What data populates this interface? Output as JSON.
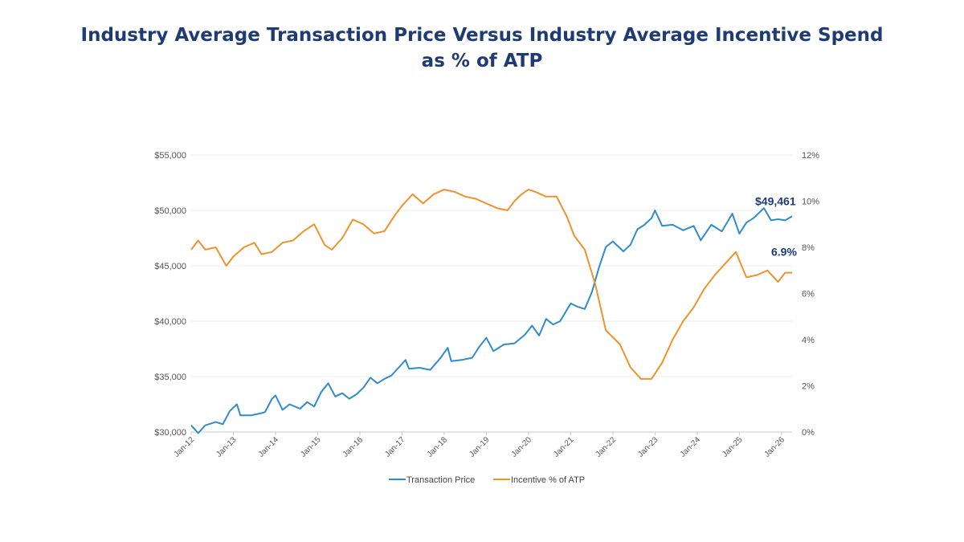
{
  "chart_data": {
    "type": "line",
    "title": "Industry Average Transaction Price Versus Industry Average Incentive Spend as % of ATP",
    "x_ticks": [
      "Jan-12",
      "Jan-13",
      "Jan-14",
      "Jan-15",
      "Jan-16",
      "Jan-17",
      "Jan-18",
      "Jan-19",
      "Jan-20",
      "Jan-21",
      "Jan-22",
      "Jan-23",
      "Jan-24",
      "Jan-25",
      "Jan-26"
    ],
    "x_range": [
      "2012-01",
      "2026-04"
    ],
    "y_left": {
      "min": 30000,
      "max": 55000,
      "ticks": [
        "$30,000",
        "$35,000",
        "$40,000",
        "$45,000",
        "$50,000",
        "$55,000"
      ]
    },
    "y_right": {
      "min": 0,
      "max": 12,
      "ticks": [
        "0%",
        "2%",
        "4%",
        "6%",
        "8%",
        "10%",
        "12%"
      ]
    },
    "grid": true,
    "legend_position": "bottom",
    "series": [
      {
        "name": "Transaction Price",
        "axis": "left",
        "color": "#2f8ccb",
        "x": [
          "2012-01",
          "2012-03",
          "2012-05",
          "2012-08",
          "2012-10",
          "2012-12",
          "2013-02",
          "2013-03",
          "2013-06",
          "2013-09",
          "2013-10",
          "2013-12",
          "2014-01",
          "2014-03",
          "2014-05",
          "2014-08",
          "2014-10",
          "2014-12",
          "2015-02",
          "2015-04",
          "2015-06",
          "2015-08",
          "2015-10",
          "2015-12",
          "2016-02",
          "2016-04",
          "2016-06",
          "2016-08",
          "2016-10",
          "2016-12",
          "2017-02",
          "2017-03",
          "2017-06",
          "2017-09",
          "2017-12",
          "2018-02",
          "2018-03",
          "2018-06",
          "2018-09",
          "2018-11",
          "2019-01",
          "2019-03",
          "2019-06",
          "2019-09",
          "2019-12",
          "2020-02",
          "2020-04",
          "2020-06",
          "2020-08",
          "2020-10",
          "2021-01",
          "2021-03",
          "2021-05",
          "2021-07",
          "2021-09",
          "2021-11",
          "2022-01",
          "2022-04",
          "2022-06",
          "2022-08",
          "2022-10",
          "2022-12",
          "2023-01",
          "2023-03",
          "2023-06",
          "2023-09",
          "2023-12",
          "2024-02",
          "2024-05",
          "2024-08",
          "2024-11",
          "2025-01",
          "2025-03",
          "2025-05",
          "2025-08",
          "2025-10",
          "2025-12",
          "2026-02",
          "2026-04"
        ],
        "values": [
          30600,
          29900,
          30600,
          30900,
          30700,
          31900,
          32500,
          31500,
          31500,
          31700,
          31800,
          33000,
          33300,
          32000,
          32500,
          32100,
          32700,
          32300,
          33600,
          34400,
          33200,
          33500,
          33000,
          33400,
          34000,
          34900,
          34400,
          34800,
          35100,
          35800,
          36500,
          35700,
          35800,
          35600,
          36700,
          37600,
          36400,
          36500,
          36700,
          37700,
          38500,
          37300,
          37900,
          38000,
          38800,
          39600,
          38700,
          40200,
          39700,
          40000,
          41600,
          41300,
          41100,
          42600,
          44800,
          46700,
          47200,
          46300,
          46900,
          48300,
          48700,
          49300,
          50000,
          48600,
          48700,
          48200,
          48600,
          47300,
          48700,
          48100,
          49700,
          47900,
          48900,
          49300,
          50200,
          49100,
          49200,
          49100,
          49461
        ],
        "end_label": "$49,461"
      },
      {
        "name": "Incentive % of ATP",
        "axis": "right",
        "color": "#f0922b",
        "x": [
          "2012-01",
          "2012-03",
          "2012-05",
          "2012-08",
          "2012-11",
          "2013-01",
          "2013-04",
          "2013-07",
          "2013-09",
          "2013-12",
          "2014-03",
          "2014-06",
          "2014-09",
          "2014-12",
          "2015-03",
          "2015-05",
          "2015-08",
          "2015-11",
          "2016-02",
          "2016-05",
          "2016-08",
          "2016-11",
          "2017-01",
          "2017-04",
          "2017-07",
          "2017-10",
          "2018-01",
          "2018-04",
          "2018-07",
          "2018-10",
          "2019-01",
          "2019-04",
          "2019-07",
          "2019-09",
          "2019-11",
          "2020-01",
          "2020-03",
          "2020-06",
          "2020-09",
          "2020-12",
          "2021-02",
          "2021-05",
          "2021-08",
          "2021-11",
          "2022-03",
          "2022-06",
          "2022-09",
          "2022-12",
          "2023-03",
          "2023-06",
          "2023-09",
          "2023-12",
          "2024-03",
          "2024-06",
          "2024-09",
          "2024-12",
          "2025-03",
          "2025-06",
          "2025-09",
          "2025-12",
          "2026-02",
          "2026-04"
        ],
        "values": [
          7.9,
          8.3,
          7.9,
          8.0,
          7.2,
          7.6,
          8.0,
          8.2,
          7.7,
          7.8,
          8.2,
          8.3,
          8.7,
          9.0,
          8.1,
          7.9,
          8.4,
          9.2,
          9.0,
          8.6,
          8.7,
          9.4,
          9.8,
          10.3,
          9.9,
          10.3,
          10.5,
          10.4,
          10.2,
          10.1,
          9.9,
          9.7,
          9.6,
          10.0,
          10.3,
          10.5,
          10.4,
          10.2,
          10.2,
          9.3,
          8.5,
          7.9,
          6.4,
          4.4,
          3.8,
          2.8,
          2.3,
          2.3,
          3.0,
          4.0,
          4.8,
          5.4,
          6.2,
          6.8,
          7.3,
          7.8,
          6.7,
          6.8,
          7.0,
          6.5,
          6.9,
          6.9
        ],
        "end_label": "6.9%"
      }
    ]
  }
}
